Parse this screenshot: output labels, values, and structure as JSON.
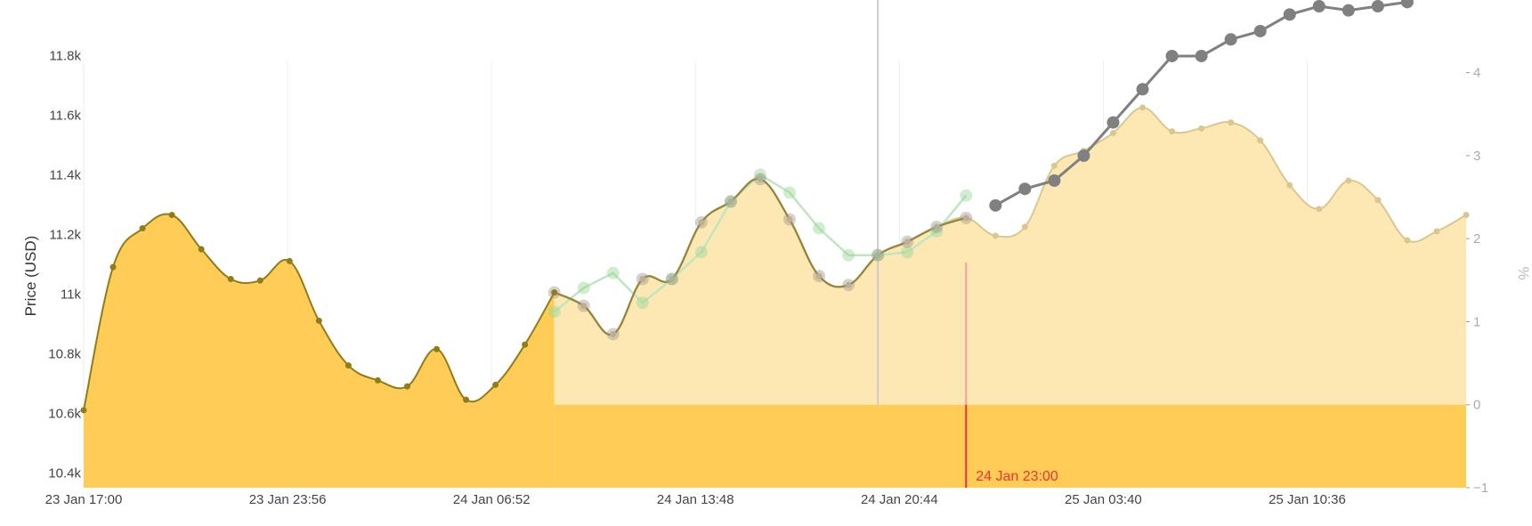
{
  "chart_data": {
    "type": "line",
    "ylabel": "Price (USD)",
    "y2label": "%",
    "ylim": [
      10350,
      11950
    ],
    "y2lim": [
      -1,
      4.8
    ],
    "x_tick_labels": [
      "23 Jan 17:00",
      "23 Jan 23:56",
      "24 Jan 06:52",
      "24 Jan 13:48",
      "24 Jan 20:44",
      "25 Jan 03:40",
      "25 Jan 10:36"
    ],
    "y_tick_labels": [
      "10.4k",
      "10.6k",
      "10.8k",
      "11k",
      "11.2k",
      "11.4k",
      "11.6k",
      "11.8k"
    ],
    "y_tick_values": [
      10400,
      10600,
      10800,
      11000,
      11200,
      11400,
      11600,
      11800
    ],
    "y2_tick_labels": [
      "−1",
      "0",
      "1",
      "2",
      "3",
      "4"
    ],
    "y2_tick_values": [
      -1,
      0,
      1,
      2,
      3,
      4
    ],
    "x_start": "23 Jan 17:00",
    "x_step_hours": 1,
    "x_end_index": 47,
    "current_time_label": "24 Jan 23:00",
    "current_time_index": 30,
    "colors": {
      "price_fill": "#ffcc55",
      "price_line": "#8f7d19",
      "forecast_fill": "#fde8b4",
      "forecast_line": "#d8c890",
      "prediction_line": "#aaaaaa",
      "green_line": "#bfe6bf",
      "change_line": "#808080",
      "now_line": "#ee3333",
      "vline": "#cccccc"
    },
    "series": [
      {
        "name": "",
        "role": "price",
        "start_index": 0,
        "values": [
          10610,
          11090,
          11220,
          11265,
          11150,
          11050,
          11045,
          11110,
          10910,
          10760,
          10710,
          10690,
          10815,
          10645,
          10695,
          10830,
          11005
        ]
      },
      {
        "name": "",
        "role": "price_continued",
        "start_index": 16,
        "values": [
          11005,
          10960,
          10865,
          11050,
          11050,
          11240,
          11310,
          11385,
          11250,
          11060,
          11030,
          11130,
          11175,
          11225,
          11255,
          11195,
          11225,
          11430,
          11480,
          11540,
          11625,
          11545,
          11555,
          11575,
          11515,
          11365,
          11285,
          11380,
          11315,
          11180,
          11210,
          11265
        ]
      },
      {
        "name": "",
        "role": "prediction",
        "start_index": 16,
        "values": [
          11005,
          10960,
          10865,
          11050,
          11050,
          11240,
          11310,
          11385,
          11250,
          11060,
          11030,
          11130,
          11175,
          11225,
          11255
        ]
      },
      {
        "name": "",
        "role": "green_forecast",
        "start_index": 16,
        "values": [
          10940,
          11020,
          11070,
          10970,
          11050,
          11140,
          11310,
          11400,
          11340,
          11220,
          11130,
          11130,
          11140,
          11210,
          11330
        ]
      },
      {
        "name": "",
        "role": "percent_change",
        "axis": "right",
        "start_index": 31,
        "values": [
          2.4,
          2.6,
          2.7,
          3.0,
          3.4,
          3.8,
          4.2,
          4.2,
          4.4,
          4.5,
          4.7,
          4.8,
          4.75,
          4.8,
          4.85
        ]
      }
    ]
  }
}
